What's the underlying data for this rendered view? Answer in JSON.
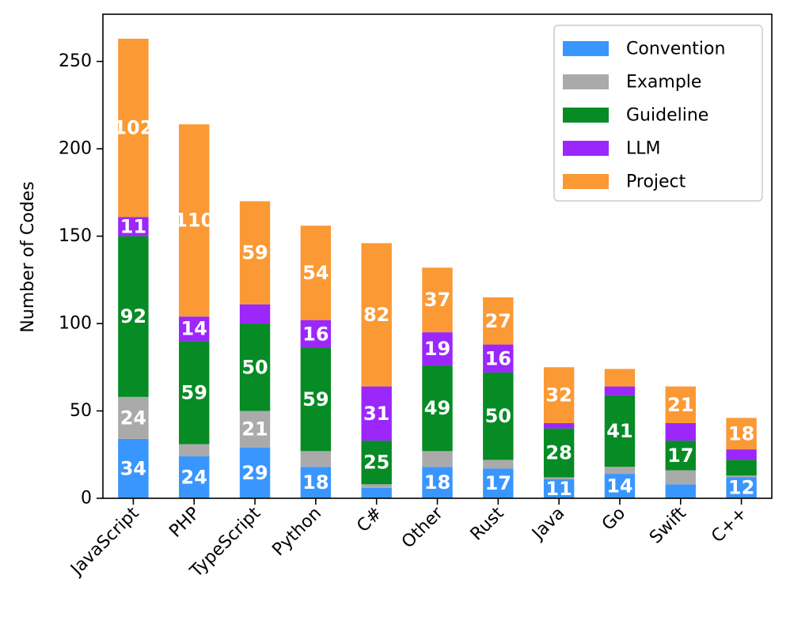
{
  "chart_data": {
    "type": "bar",
    "stacked": true,
    "ylabel": "Number of Codes",
    "xlabel": "",
    "ylim": [
      0,
      277
    ],
    "yticks": [
      "0",
      "50",
      "100",
      "150",
      "200",
      "250"
    ],
    "categories": [
      "JavaScript",
      "PHP",
      "TypeScript",
      "Python",
      "C#",
      "Other",
      "Rust",
      "Java",
      "Go",
      "Swift",
      "C++"
    ],
    "legend_position": "top-right",
    "series": [
      {
        "name": "Convention",
        "color": "#3a96ff",
        "values": [
          34,
          24,
          29,
          18,
          6,
          18,
          17,
          11,
          14,
          8,
          12
        ],
        "labels": [
          "34",
          "24",
          "29",
          "18",
          "",
          "18",
          "17",
          "11",
          "14",
          "",
          "12"
        ]
      },
      {
        "name": "Example",
        "color": "#aaaaaa",
        "values": [
          24,
          7,
          21,
          9,
          2,
          9,
          5,
          1,
          4,
          8,
          1
        ],
        "labels": [
          "24",
          "",
          "21",
          "",
          "",
          "",
          "",
          "",
          "",
          "",
          ""
        ]
      },
      {
        "name": "Guideline",
        "color": "#068b25",
        "values": [
          92,
          59,
          50,
          59,
          25,
          49,
          50,
          28,
          41,
          17,
          9
        ],
        "labels": [
          "92",
          "59",
          "50",
          "59",
          "25",
          "49",
          "50",
          "28",
          "41",
          "17",
          ""
        ]
      },
      {
        "name": "LLM",
        "color": "#9b27fb",
        "values": [
          11,
          14,
          11,
          16,
          31,
          19,
          16,
          3,
          5,
          10,
          6
        ],
        "labels": [
          "11",
          "14",
          "",
          "16",
          "31",
          "19",
          "16",
          "",
          "",
          "",
          ""
        ]
      },
      {
        "name": "Project",
        "color": "#fb9935",
        "values": [
          102,
          110,
          59,
          54,
          82,
          37,
          27,
          32,
          10,
          21,
          18
        ],
        "labels": [
          "102",
          "110",
          "59",
          "54",
          "82",
          "37",
          "27",
          "32",
          "",
          "21",
          "18"
        ]
      }
    ]
  }
}
